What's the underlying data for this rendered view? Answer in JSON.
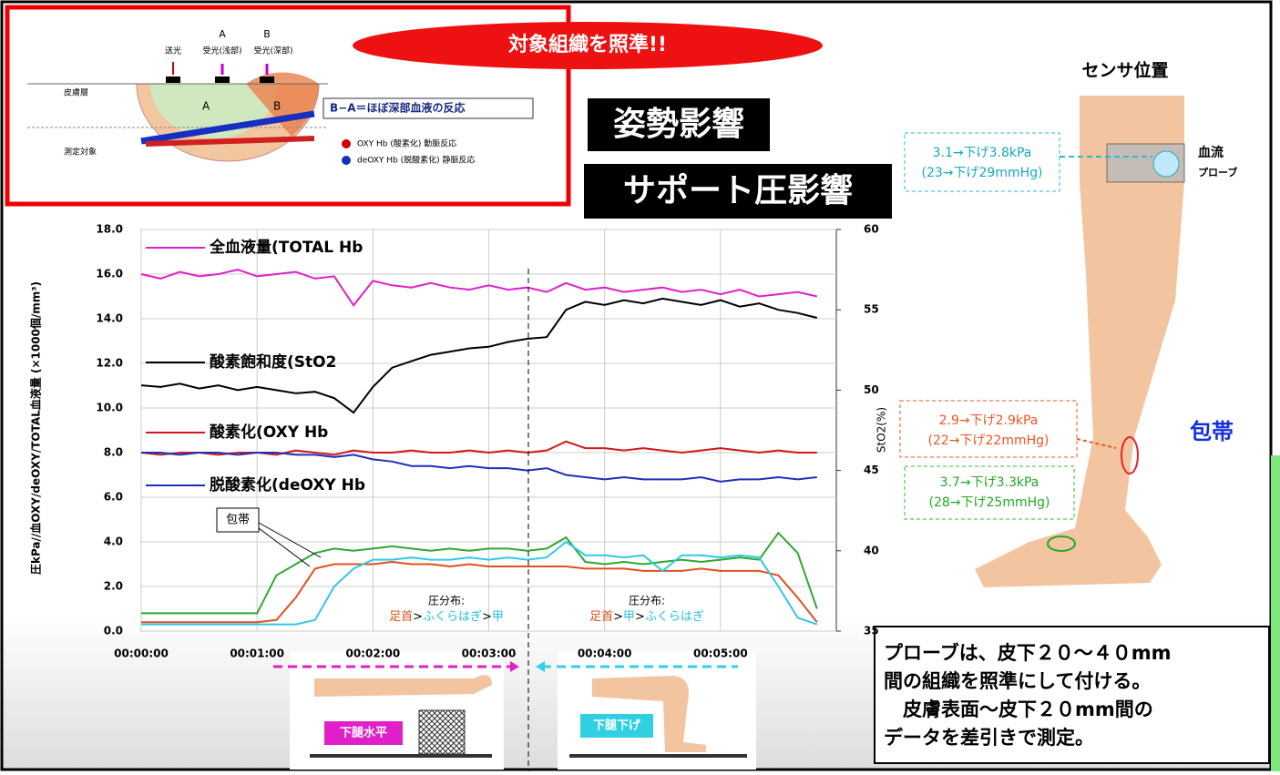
{
  "header": {
    "target": "対象組織を照準!!",
    "posture": "姿勢影響",
    "support": "サポート圧影響"
  },
  "diagram": {
    "send": "送光",
    "a": "A",
    "a_recv": "受光(浅部)",
    "b": "B",
    "b_recv": "受光(深部)",
    "skin": "皮膚層",
    "object": "測定対象",
    "region_a": "A",
    "region_b": "B",
    "formula": "B−A＝ほぼ深部血液の反応",
    "oxy": "OXY Hb (酸素化) 動脈反応",
    "deoxy": "deOXY Hb (脱酸素化) 静脈反応"
  },
  "sensor": {
    "title": "センサ位置",
    "probe_1": "3.1→下げ3.8kPa",
    "probe_2": "(23→下げ29mmHg)",
    "probe_label": "血流",
    "probe_label_2": "プローブ",
    "mid_1": "2.9→下げ2.9kPa",
    "mid_2": "(22→下げ22mmHg)",
    "low_1": "3.7→下げ3.3kPa",
    "low_2": "(28→下げ25mmHg)",
    "bandage": "包帯"
  },
  "note": {
    "lines": [
      "プローブは、皮下２０～４０mm",
      "間の組織を照準にして付ける。",
      "　皮膚表面～皮下２０mm間の",
      "データを差引きで測定。"
    ]
  },
  "postures": {
    "flat": "下腿水平",
    "down": "下腿下げ"
  },
  "annotations": {
    "bandage": "包帯",
    "dist_1": "圧分布:",
    "order_1": [
      "足首",
      ">",
      "ふくらはぎ",
      ">",
      "甲"
    ],
    "dist_2": "圧分布:",
    "order_2": [
      "足首",
      ">",
      "甲",
      ">",
      "ふくらはぎ"
    ]
  },
  "chart_data": {
    "type": "line",
    "ylabel": "圧kPa//血OXY/deOXY/TOTAL血液量 (×1000個/mm³)",
    "y2label": "StO2(%)",
    "x": [
      0,
      10,
      20,
      30,
      40,
      50,
      60,
      70,
      80,
      90,
      100,
      110,
      120,
      130,
      140,
      150,
      160,
      170,
      180,
      190,
      200,
      210,
      220,
      230,
      240,
      250,
      260,
      270,
      280,
      290,
      300,
      310,
      320,
      330,
      340,
      350
    ],
    "xlim": [
      0,
      360
    ],
    "xticks": [
      {
        "value": 0,
        "label": "00:00:00"
      },
      {
        "value": 60,
        "label": "00:01:00"
      },
      {
        "value": 120,
        "label": "00:02:00"
      },
      {
        "value": 180,
        "label": "00:03:00"
      },
      {
        "value": 240,
        "label": "00:04:00"
      },
      {
        "value": 300,
        "label": "00:05:00"
      }
    ],
    "ylim": [
      0,
      18
    ],
    "yticks": [
      {
        "value": 0,
        "label": "0.0"
      },
      {
        "value": 2,
        "label": "2.0"
      },
      {
        "value": 4,
        "label": "4.0"
      },
      {
        "value": 6,
        "label": "6.0"
      },
      {
        "value": 8,
        "label": "8.0"
      },
      {
        "value": 10,
        "label": "10.0"
      },
      {
        "value": 12,
        "label": "12.0"
      },
      {
        "value": 14,
        "label": "14.0"
      },
      {
        "value": 16,
        "label": "16.0"
      },
      {
        "value": 18,
        "label": "18.0"
      }
    ],
    "y2lim": [
      35,
      60
    ],
    "y2ticks": [
      35,
      40,
      45,
      50,
      55,
      60
    ],
    "grid": true,
    "series": [
      {
        "name": "全血液量(TOTAL Hb",
        "color": "#e020c8",
        "values": [
          16.0,
          15.8,
          16.1,
          15.9,
          16.0,
          16.2,
          15.9,
          16.0,
          16.1,
          15.8,
          15.9,
          14.6,
          15.7,
          15.5,
          15.4,
          15.6,
          15.4,
          15.3,
          15.5,
          15.3,
          15.4,
          15.2,
          15.6,
          15.3,
          15.4,
          15.2,
          15.3,
          15.4,
          15.2,
          15.3,
          15.1,
          15.3,
          15.0,
          15.1,
          15.2,
          15.0
        ]
      },
      {
        "name": "酸素飽和度(StO2",
        "color": "#000000",
        "axis": "y2",
        "values": [
          50.3,
          50.2,
          50.4,
          50.1,
          50.3,
          50.0,
          50.2,
          50.0,
          49.8,
          49.9,
          49.5,
          48.6,
          50.2,
          51.4,
          51.8,
          52.2,
          52.4,
          52.6,
          52.7,
          53.0,
          53.2,
          53.3,
          55.0,
          55.5,
          55.3,
          55.6,
          55.4,
          55.7,
          55.5,
          55.3,
          55.6,
          55.2,
          55.4,
          55.0,
          54.8,
          54.5
        ]
      },
      {
        "name": "酸素化(OXY Hb",
        "color": "#d01818",
        "values": [
          8.0,
          7.9,
          8.0,
          8.0,
          7.9,
          8.0,
          8.0,
          7.9,
          8.1,
          8.0,
          7.9,
          8.1,
          8.0,
          8.0,
          8.1,
          8.0,
          8.0,
          8.1,
          8.0,
          8.1,
          8.0,
          8.1,
          8.5,
          8.2,
          8.2,
          8.1,
          8.2,
          8.1,
          8.0,
          8.1,
          8.2,
          8.1,
          8.0,
          8.1,
          8.0,
          8.0
        ]
      },
      {
        "name": "脱酸素化(deOXY Hb",
        "color": "#1f2fb8",
        "values": [
          8.0,
          8.0,
          7.9,
          8.0,
          8.0,
          7.9,
          8.0,
          8.0,
          7.9,
          7.9,
          7.8,
          7.9,
          7.7,
          7.6,
          7.4,
          7.4,
          7.3,
          7.4,
          7.3,
          7.3,
          7.2,
          7.3,
          7.0,
          6.9,
          6.8,
          6.9,
          6.8,
          6.8,
          6.8,
          6.9,
          6.7,
          6.8,
          6.8,
          6.9,
          6.8,
          6.9
        ]
      },
      {
        "color": "#30a830",
        "values": [
          0.8,
          0.8,
          0.8,
          0.8,
          0.8,
          0.8,
          0.8,
          2.5,
          3.0,
          3.5,
          3.7,
          3.6,
          3.7,
          3.8,
          3.7,
          3.6,
          3.7,
          3.6,
          3.7,
          3.7,
          3.6,
          3.7,
          4.2,
          3.1,
          3.0,
          3.1,
          3.0,
          3.1,
          3.2,
          3.1,
          3.2,
          3.3,
          3.2,
          4.4,
          3.5,
          1.0
        ]
      },
      {
        "color": "#e0501c",
        "values": [
          0.4,
          0.4,
          0.4,
          0.4,
          0.4,
          0.4,
          0.4,
          0.5,
          1.5,
          2.8,
          3.0,
          3.0,
          3.0,
          3.1,
          3.0,
          3.0,
          2.9,
          3.0,
          2.9,
          2.9,
          2.9,
          2.9,
          2.9,
          2.8,
          2.8,
          2.8,
          2.7,
          2.7,
          2.7,
          2.8,
          2.7,
          2.7,
          2.7,
          2.5,
          1.5,
          0.4
        ]
      },
      {
        "color": "#30c8e8",
        "values": [
          0.3,
          0.3,
          0.3,
          0.3,
          0.3,
          0.3,
          0.3,
          0.3,
          0.3,
          0.5,
          2.0,
          2.8,
          3.2,
          3.2,
          3.3,
          3.2,
          3.2,
          3.3,
          3.2,
          3.3,
          3.2,
          3.3,
          4.0,
          3.4,
          3.4,
          3.3,
          3.4,
          2.7,
          3.4,
          3.4,
          3.3,
          3.4,
          3.3,
          2.0,
          0.6,
          0.3
        ]
      }
    ]
  }
}
